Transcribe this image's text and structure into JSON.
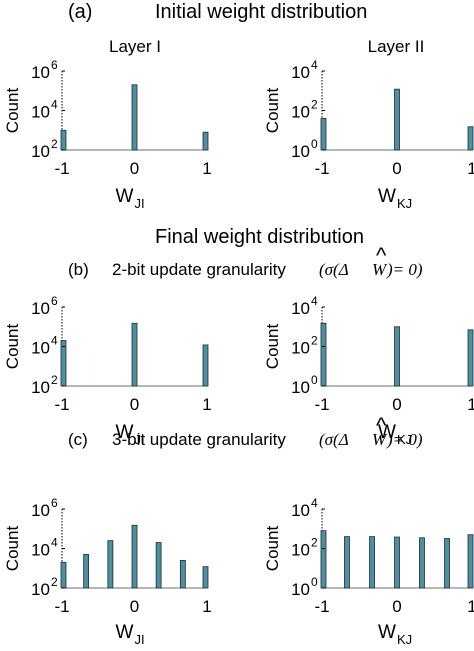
{
  "figure": {
    "panel_a_label": "(a)",
    "panel_a_title": "Initial weight distribution",
    "layer_titles": [
      "Layer I",
      "Layer II"
    ],
    "final_title": "Final weight distribution",
    "panel_b_label": "(b)",
    "panel_b_text": "2-bit update granularity",
    "panel_c_label": "(c)",
    "panel_c_text": "3-bit update granularity",
    "condition_left": "(σ(Δ",
    "condition_w": "W",
    "condition_hat": "^",
    "condition_right": ")= 0)"
  },
  "chart_data": [
    {
      "type": "bar",
      "panel": "(a)",
      "layer": "Layer I",
      "x": [
        -1,
        0,
        1
      ],
      "values": [
        1000,
        200000,
        800
      ],
      "xlabel": "W",
      "xlabel_sub": "JI",
      "ylabel": "Count",
      "yscale": "log",
      "ylim": [
        100,
        1000000
      ],
      "yticks": [
        {
          "base": "10",
          "exp": "2"
        },
        {
          "base": "10",
          "exp": "4"
        },
        {
          "base": "10",
          "exp": "6"
        }
      ],
      "xticks": [
        "-1",
        "0",
        "1"
      ],
      "xlim": [
        -1,
        1
      ],
      "grid": false,
      "color": "#4f8fa0"
    },
    {
      "type": "bar",
      "panel": "(a)",
      "layer": "Layer II",
      "x": [
        -1,
        0,
        1
      ],
      "values": [
        40,
        1200,
        15
      ],
      "xlabel": "W",
      "xlabel_sub": "KJ",
      "ylabel": "Count",
      "yscale": "log",
      "ylim": [
        1,
        10000
      ],
      "yticks": [
        {
          "base": "10",
          "exp": "0"
        },
        {
          "base": "10",
          "exp": "2"
        },
        {
          "base": "10",
          "exp": "4"
        }
      ],
      "xticks": [
        "-1",
        "0",
        "1"
      ],
      "xlim": [
        -1,
        1
      ],
      "grid": false,
      "color": "#4f8fa0"
    },
    {
      "type": "bar",
      "panel": "(b)",
      "layer": "Layer I",
      "x": [
        -1,
        0,
        1
      ],
      "values": [
        20000,
        150000,
        12000
      ],
      "xlabel": "W",
      "xlabel_sub": "JI",
      "ylabel": "Count",
      "yscale": "log",
      "ylim": [
        100,
        1000000
      ],
      "yticks": [
        {
          "base": "10",
          "exp": "2"
        },
        {
          "base": "10",
          "exp": "4"
        },
        {
          "base": "10",
          "exp": "6"
        }
      ],
      "xticks": [
        "-1",
        "0",
        "1"
      ],
      "xlim": [
        -1,
        1
      ],
      "grid": false,
      "color": "#4f8fa0"
    },
    {
      "type": "bar",
      "panel": "(b)",
      "layer": "Layer II",
      "x": [
        -1,
        0,
        1
      ],
      "values": [
        1500,
        1000,
        700
      ],
      "xlabel": "W",
      "xlabel_sub": "KJ",
      "ylabel": "Count",
      "yscale": "log",
      "ylim": [
        1,
        10000
      ],
      "yticks": [
        {
          "base": "10",
          "exp": "0"
        },
        {
          "base": "10",
          "exp": "2"
        },
        {
          "base": "10",
          "exp": "4"
        }
      ],
      "xticks": [
        "-1",
        "0",
        "1"
      ],
      "xlim": [
        -1,
        1
      ],
      "grid": false,
      "color": "#4f8fa0"
    },
    {
      "type": "bar",
      "panel": "(c)",
      "layer": "Layer I",
      "x": [
        -1,
        -0.667,
        -0.333,
        0,
        0.333,
        0.667,
        1
      ],
      "values": [
        2000,
        5000,
        25000,
        150000,
        20000,
        2500,
        1200
      ],
      "xlabel": "W",
      "xlabel_sub": "JI",
      "ylabel": "Count",
      "yscale": "log",
      "ylim": [
        100,
        1000000
      ],
      "yticks": [
        {
          "base": "10",
          "exp": "2"
        },
        {
          "base": "10",
          "exp": "4"
        },
        {
          "base": "10",
          "exp": "6"
        }
      ],
      "xticks": [
        "-1",
        "0",
        "1"
      ],
      "xlim": [
        -1,
        1
      ],
      "grid": false,
      "color": "#4f8fa0"
    },
    {
      "type": "bar",
      "panel": "(c)",
      "layer": "Layer II",
      "x": [
        -1,
        -0.667,
        -0.333,
        0,
        0.333,
        0.667,
        1
      ],
      "values": [
        800,
        400,
        400,
        380,
        350,
        320,
        500
      ],
      "xlabel": "W",
      "xlabel_sub": "KJ",
      "ylabel": "Count",
      "yscale": "log",
      "ylim": [
        1,
        10000
      ],
      "yticks": [
        {
          "base": "10",
          "exp": "0"
        },
        {
          "base": "10",
          "exp": "2"
        },
        {
          "base": "10",
          "exp": "4"
        }
      ],
      "xticks": [
        "-1",
        "0",
        "1"
      ],
      "xlim": [
        -1,
        1
      ],
      "grid": false,
      "color": "#4f8fa0"
    }
  ]
}
